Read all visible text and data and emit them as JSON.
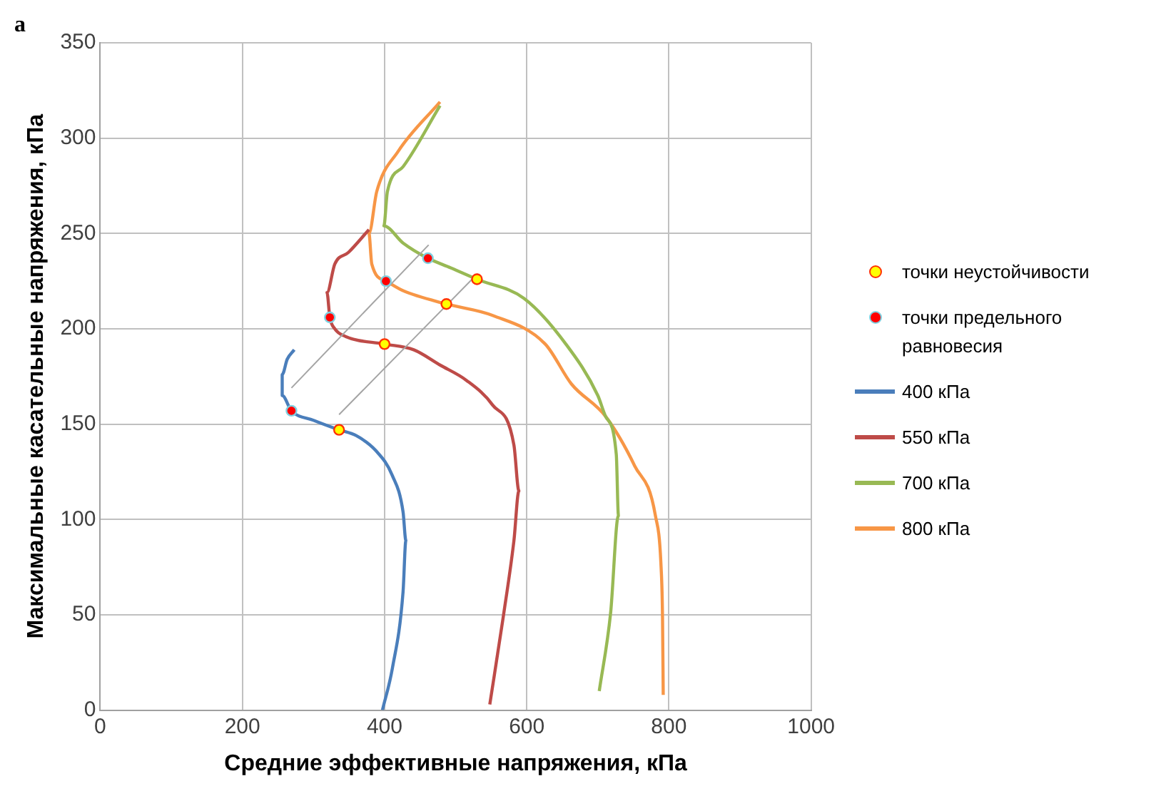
{
  "chart_data": {
    "type": "line",
    "xlabel": "Средние эффективные напряжения, кПа",
    "ylabel": "Максимальные касательные напряжения, кПа",
    "annotations": [
      "а"
    ],
    "xlim": [
      0,
      1000
    ],
    "xticks": [
      0,
      200,
      400,
      600,
      800,
      1000
    ],
    "ylim": [
      0,
      350
    ],
    "yticks": [
      0,
      50,
      100,
      150,
      200,
      250,
      300,
      350
    ],
    "grid": true,
    "legend": "right",
    "series": [
      {
        "type": "line",
        "color": "#a5a5a5",
        "x": [
          269,
          462
        ],
        "values": [
          169,
          244
        ]
      },
      {
        "type": "line",
        "color": "#a5a5a5",
        "x": [
          336,
          531
        ],
        "values": [
          155,
          229
        ]
      },
      {
        "name": "точки неустойчивости",
        "type": "scatter",
        "color": "#ffff00",
        "x": [
          336,
          400,
          487,
          530
        ],
        "values": [
          147,
          192,
          213,
          226
        ]
      },
      {
        "name": "точки предельного равновесия",
        "type": "scatter",
        "color": "#ff0000",
        "x": [
          269,
          323,
          402,
          461
        ],
        "values": [
          157,
          206,
          225,
          237
        ]
      },
      {
        "name": "400 кПа",
        "type": "line",
        "color": "#4a7ebb",
        "x": [
          397,
          411,
          426,
          430,
          426,
          411,
          388,
          360,
          336,
          300,
          269,
          256,
          256,
          263,
          273
        ],
        "values": [
          0,
          22,
          62,
          89,
          104,
          123,
          136,
          144,
          147,
          152,
          157,
          165,
          176,
          184,
          189
        ]
      },
      {
        "name": "550 кПа",
        "type": "line",
        "color": "#be4b48",
        "x": [
          548,
          567,
          582,
          589,
          582,
          552,
          515,
          478,
          441,
          400,
          345,
          330,
          323,
          319,
          330,
          349,
          378
        ],
        "values": [
          3,
          49,
          89,
          115,
          139,
          160,
          173,
          181,
          189,
          192,
          196,
          200,
          206,
          219,
          234,
          240,
          252
        ]
      },
      {
        "name": "700 кПа",
        "type": "line",
        "color": "#98b954",
        "x": [
          702,
          718,
          729,
          726,
          711,
          700,
          655,
          596,
          530,
          493,
          461,
          426,
          399,
          404,
          426,
          478
        ],
        "values": [
          10,
          51,
          102,
          134,
          154,
          165,
          192,
          216,
          226,
          232,
          237,
          245,
          254,
          272,
          285,
          317
        ]
      },
      {
        "name": "800 кПа",
        "type": "line",
        "color": "#f79646",
        "x": [
          792,
          791,
          789,
          781,
          752,
          711,
          663,
          626,
          552,
          487,
          426,
          402,
          382,
          378,
          389,
          419,
          478
        ],
        "values": [
          8,
          49,
          75,
          102,
          128,
          154,
          171,
          192,
          207,
          213,
          220,
          225,
          234,
          250,
          272,
          293,
          319
        ]
      }
    ]
  }
}
